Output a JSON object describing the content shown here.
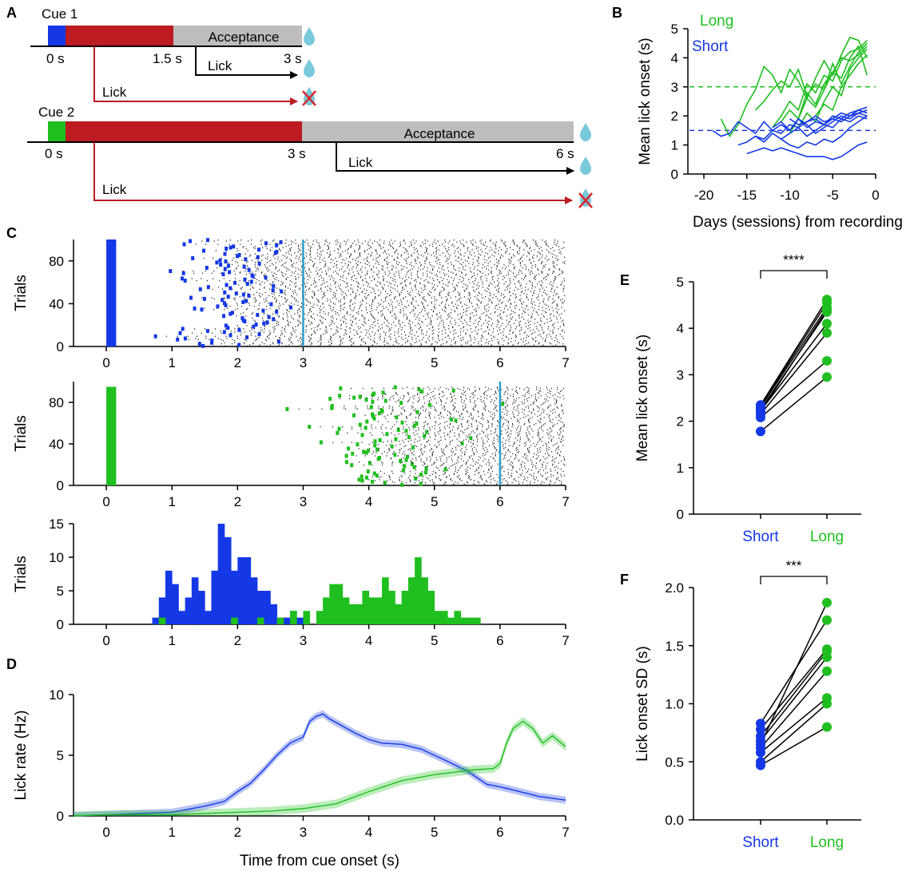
{
  "panels": {
    "A": "A",
    "B": "B",
    "C": "C",
    "D": "D",
    "E": "E",
    "F": "F"
  },
  "colors": {
    "short": "#1438e6",
    "long": "#1fbf1f",
    "red": "#bb1b21",
    "gray": "#bdbdbd",
    "water": "#79c9dc",
    "cyan": "#2a9fd0"
  },
  "schematic": {
    "cue1": {
      "label": "Cue 1",
      "t0": "0 s",
      "t1": "1.5 s",
      "t2": "3 s",
      "acceptance": "Acceptance",
      "lick_ok": "Lick",
      "lick_bad": "Lick"
    },
    "cue2": {
      "label": "Cue 2",
      "t0": "0 s",
      "t1": "3 s",
      "t2": "6 s",
      "acceptance": "Acceptance",
      "lick_ok": "Lick",
      "lick_bad": "Lick"
    }
  },
  "chart_data": [
    {
      "panel": "B",
      "type": "line",
      "legend": [
        "Long",
        "Short"
      ],
      "xlabel": "Days (sessions) from recording",
      "ylabel": "Mean lick onset (s)",
      "xlim": [
        -20,
        0
      ],
      "ylim": [
        0,
        5
      ],
      "xticks": [
        "-20",
        "-15",
        "-10",
        "-5",
        "0"
      ],
      "yticks": [
        "0",
        "1",
        "2",
        "3",
        "4",
        "5"
      ],
      "reference_lines": [
        {
          "y": 3,
          "color": "long",
          "style": "dashed"
        },
        {
          "y": 1.5,
          "color": "short",
          "style": "dashed"
        }
      ],
      "series": [
        {
          "group": "long",
          "x": [
            -18,
            -17,
            -16,
            -15,
            -14,
            -13,
            -12,
            -11,
            -10,
            -9,
            -8,
            -7,
            -6,
            -5,
            -4,
            -3,
            -2,
            -1
          ],
          "y": [
            1.9,
            1.3,
            1.7,
            2.4,
            2.9,
            3.7,
            3.4,
            2.8,
            3.6,
            3.2,
            2.6,
            3.3,
            3.9,
            3.4,
            4.1,
            4.7,
            4.6,
            4.0
          ]
        },
        {
          "group": "long",
          "x": [
            -14,
            -13,
            -12,
            -11,
            -10,
            -9,
            -8,
            -7,
            -6,
            -5,
            -4,
            -3,
            -2,
            -1
          ],
          "y": [
            2.2,
            2.5,
            2.9,
            3.2,
            3.0,
            3.6,
            2.7,
            3.1,
            2.9,
            3.5,
            4.0,
            3.9,
            4.1,
            4.4
          ]
        },
        {
          "group": "long",
          "x": [
            -12,
            -11,
            -10,
            -9,
            -8,
            -7,
            -6,
            -5,
            -4,
            -3,
            -2,
            -1
          ],
          "y": [
            1.6,
            2.0,
            2.5,
            2.2,
            3.1,
            2.8,
            3.4,
            3.2,
            3.9,
            4.2,
            4.3,
            4.6
          ]
        },
        {
          "group": "long",
          "x": [
            -11,
            -10,
            -9,
            -8,
            -7,
            -6,
            -5,
            -4,
            -3,
            -2,
            -1
          ],
          "y": [
            1.8,
            2.2,
            1.9,
            2.8,
            2.4,
            3.1,
            3.5,
            3.3,
            4.0,
            4.4,
            3.4
          ]
        },
        {
          "group": "long",
          "x": [
            -10,
            -9,
            -8,
            -7,
            -6,
            -5,
            -4,
            -3,
            -2,
            -1
          ],
          "y": [
            1.4,
            1.9,
            2.6,
            2.3,
            2.9,
            3.8,
            3.1,
            3.7,
            4.2,
            4.5
          ]
        },
        {
          "group": "long",
          "x": [
            -9,
            -8,
            -7,
            -6,
            -5,
            -4,
            -3,
            -2,
            -1
          ],
          "y": [
            1.6,
            2.1,
            1.8,
            2.5,
            3.0,
            2.7,
            3.6,
            4.0,
            4.3
          ]
        },
        {
          "group": "long",
          "x": [
            -7,
            -6,
            -5,
            -4,
            -3,
            -2,
            -1
          ],
          "y": [
            2.0,
            2.4,
            2.2,
            3.0,
            3.4,
            3.8,
            4.1
          ]
        },
        {
          "group": "short",
          "x": [
            -19,
            -18,
            -17,
            -16,
            -15,
            -14,
            -13,
            -12,
            -11,
            -10,
            -9,
            -8,
            -7,
            -6,
            -5,
            -4,
            -3,
            -2,
            -1
          ],
          "y": [
            1.5,
            1.3,
            1.4,
            1.8,
            1.6,
            1.4,
            1.8,
            1.5,
            1.7,
            1.5,
            1.9,
            1.6,
            1.8,
            1.7,
            1.9,
            1.8,
            2.0,
            2.1,
            2.0
          ]
        },
        {
          "group": "short",
          "x": [
            -16,
            -15,
            -14,
            -13,
            -12,
            -11,
            -10,
            -9,
            -8,
            -7,
            -6,
            -5,
            -4,
            -3,
            -2,
            -1
          ],
          "y": [
            1.0,
            1.1,
            1.3,
            1.2,
            1.5,
            1.4,
            1.7,
            1.6,
            1.8,
            1.9,
            1.7,
            2.0,
            1.9,
            2.1,
            2.2,
            2.3
          ]
        },
        {
          "group": "short",
          "x": [
            -15,
            -14,
            -13,
            -12,
            -11,
            -10,
            -9,
            -8,
            -7,
            -6,
            -5,
            -4,
            -3,
            -2,
            -1
          ],
          "y": [
            0.7,
            0.8,
            0.9,
            0.8,
            0.9,
            0.8,
            0.7,
            0.6,
            0.6,
            0.6,
            0.5,
            0.6,
            0.8,
            1.0,
            1.1
          ]
        },
        {
          "group": "short",
          "x": [
            -14,
            -13,
            -12,
            -11,
            -10,
            -9,
            -8,
            -7,
            -6,
            -5,
            -4,
            -3,
            -2,
            -1
          ],
          "y": [
            1.3,
            1.1,
            1.4,
            1.2,
            1.0,
            0.9,
            1.1,
            1.0,
            1.2,
            1.1,
            1.3,
            1.6,
            1.8,
            2.0
          ]
        },
        {
          "group": "short",
          "x": [
            -12,
            -11,
            -10,
            -9,
            -8,
            -7,
            -6,
            -5,
            -4,
            -3,
            -2,
            -1
          ],
          "y": [
            1.6,
            1.8,
            1.5,
            1.9,
            1.7,
            1.4,
            1.6,
            1.8,
            2.0,
            1.9,
            2.1,
            2.2
          ]
        },
        {
          "group": "short",
          "x": [
            -11,
            -10,
            -9,
            -8,
            -7,
            -6,
            -5,
            -4,
            -3,
            -2,
            -1
          ],
          "y": [
            1.2,
            1.4,
            1.6,
            1.3,
            1.5,
            1.7,
            1.6,
            1.9,
            1.8,
            2.0,
            1.9
          ]
        },
        {
          "group": "short",
          "x": [
            -10,
            -9,
            -8,
            -7,
            -6,
            -5,
            -4,
            -3,
            -2,
            -1
          ],
          "y": [
            1.9,
            1.7,
            1.8,
            2.0,
            1.8,
            1.9,
            2.1,
            2.0,
            2.2,
            2.1
          ]
        }
      ]
    },
    {
      "panel": "C",
      "type": "raster",
      "ylabel": "Trials",
      "xlim": [
        -0.5,
        7
      ],
      "ylim": [
        0,
        100
      ],
      "xticks": [
        "0",
        "1",
        "2",
        "3",
        "4",
        "5",
        "6",
        "7"
      ],
      "yticks": [
        "0",
        "40",
        "80"
      ],
      "rasters": [
        {
          "color": "short",
          "cue_window": [
            0,
            0.15
          ],
          "cutoff": 3,
          "trials": 100,
          "onset_mean": 1.9,
          "onset_sd": 0.45
        },
        {
          "color": "long",
          "cue_window": [
            0,
            0.15
          ],
          "cutoff": 6,
          "trials": 95,
          "onset_mean": 4.2,
          "onset_sd": 0.7
        }
      ]
    },
    {
      "panel": "C-hist",
      "type": "bar",
      "ylabel": "Trials",
      "xlim": [
        -0.5,
        7
      ],
      "ylim": [
        0,
        15
      ],
      "xticks": [
        "0",
        "1",
        "2",
        "3",
        "4",
        "5",
        "6",
        "7"
      ],
      "yticks": [
        "0",
        "5",
        "10",
        "15"
      ],
      "bin_width": 0.1,
      "series": [
        {
          "group": "short",
          "bin_start": [
            0.7,
            0.8,
            0.9,
            1.0,
            1.1,
            1.2,
            1.3,
            1.4,
            1.5,
            1.6,
            1.7,
            1.8,
            1.9,
            2.0,
            2.1,
            2.2,
            2.3,
            2.4,
            2.5,
            2.6,
            2.7,
            2.8,
            2.9
          ],
          "values": [
            1,
            4,
            8,
            6,
            2,
            4,
            7,
            5,
            2,
            8,
            15,
            13,
            8,
            10,
            10,
            7,
            5,
            5,
            3,
            1,
            1,
            2,
            1
          ]
        },
        {
          "group": "long",
          "bin_start": [
            0.8,
            1.9,
            2.3,
            2.6,
            2.8,
            3.0,
            3.2,
            3.3,
            3.4,
            3.5,
            3.6,
            3.7,
            3.8,
            3.9,
            4.0,
            4.1,
            4.2,
            4.3,
            4.4,
            4.5,
            4.6,
            4.7,
            4.8,
            4.9,
            5.0,
            5.1,
            5.2,
            5.3,
            5.4,
            5.5,
            5.6
          ],
          "values": [
            1,
            1,
            1,
            1,
            2,
            2,
            2,
            4,
            6,
            6,
            4,
            3,
            3,
            5,
            4,
            4,
            7,
            5,
            3,
            5,
            7,
            10,
            7,
            5,
            2,
            2,
            1,
            2,
            1,
            1,
            1
          ]
        }
      ]
    },
    {
      "panel": "D",
      "type": "line",
      "xlabel": "Time from cue onset (s)",
      "ylabel": "Lick rate (Hz)",
      "xlim": [
        -0.5,
        7
      ],
      "ylim": [
        0,
        10
      ],
      "xticks": [
        "0",
        "1",
        "2",
        "3",
        "4",
        "5",
        "6",
        "7"
      ],
      "yticks": [
        "0",
        "5",
        "10"
      ],
      "series": [
        {
          "group": "short",
          "x": [
            -0.5,
            0,
            0.5,
            1,
            1.2,
            1.5,
            1.8,
            2,
            2.2,
            2.4,
            2.6,
            2.8,
            3,
            3.1,
            3.2,
            3.3,
            3.4,
            3.6,
            3.8,
            4,
            4.2,
            4.5,
            4.8,
            5,
            5.2,
            5.5,
            5.8,
            6,
            6.3,
            6.6,
            7
          ],
          "y": [
            0,
            0.1,
            0.2,
            0.3,
            0.5,
            0.8,
            1.2,
            2.0,
            2.7,
            3.8,
            5.0,
            6.0,
            6.5,
            7.8,
            8.2,
            8.4,
            8.0,
            7.4,
            6.8,
            6.3,
            6.0,
            5.9,
            5.5,
            5.0,
            4.5,
            3.7,
            2.6,
            2.4,
            2.0,
            1.6,
            1.3
          ],
          "band": 0.3
        },
        {
          "group": "long",
          "x": [
            -0.5,
            0,
            0.5,
            1,
            1.5,
            2,
            2.5,
            3,
            3.5,
            4,
            4.5,
            5,
            5.3,
            5.6,
            5.9,
            6,
            6.1,
            6.2,
            6.35,
            6.5,
            6.65,
            6.8,
            7
          ],
          "y": [
            0,
            0.1,
            0.1,
            0.1,
            0.2,
            0.3,
            0.4,
            0.6,
            1.0,
            2.0,
            2.9,
            3.4,
            3.6,
            3.8,
            3.9,
            4.3,
            6.0,
            7.2,
            7.8,
            7.2,
            6.0,
            6.6,
            5.7
          ],
          "band": 0.35
        }
      ]
    },
    {
      "panel": "E",
      "type": "scatter",
      "significance": "****",
      "ylabel": "Mean lick onset (s)",
      "categories": [
        "Short",
        "Long"
      ],
      "ylim": [
        0,
        5
      ],
      "yticks": [
        "0",
        "1",
        "2",
        "3",
        "4",
        "5"
      ],
      "pairs": [
        [
          1.78,
          2.95
        ],
        [
          2.08,
          3.3
        ],
        [
          2.15,
          3.9
        ],
        [
          2.22,
          4.1
        ],
        [
          2.25,
          4.35
        ],
        [
          2.3,
          4.45
        ],
        [
          2.32,
          4.55
        ],
        [
          2.35,
          4.62
        ],
        [
          2.2,
          4.4
        ]
      ]
    },
    {
      "panel": "F",
      "type": "scatter",
      "significance": "***",
      "ylabel": "Lick onset SD (s)",
      "categories": [
        "Short",
        "Long"
      ],
      "ylim": [
        0,
        2
      ],
      "yticks": [
        "0.0",
        "0.5",
        "1.0",
        "1.5",
        "2.0"
      ],
      "pairs": [
        [
          0.47,
          0.8
        ],
        [
          0.5,
          1.0
        ],
        [
          0.58,
          1.05
        ],
        [
          0.62,
          1.28
        ],
        [
          0.68,
          1.4
        ],
        [
          0.72,
          1.45
        ],
        [
          0.78,
          1.47
        ],
        [
          0.83,
          1.72
        ],
        [
          0.65,
          1.87
        ]
      ]
    }
  ]
}
